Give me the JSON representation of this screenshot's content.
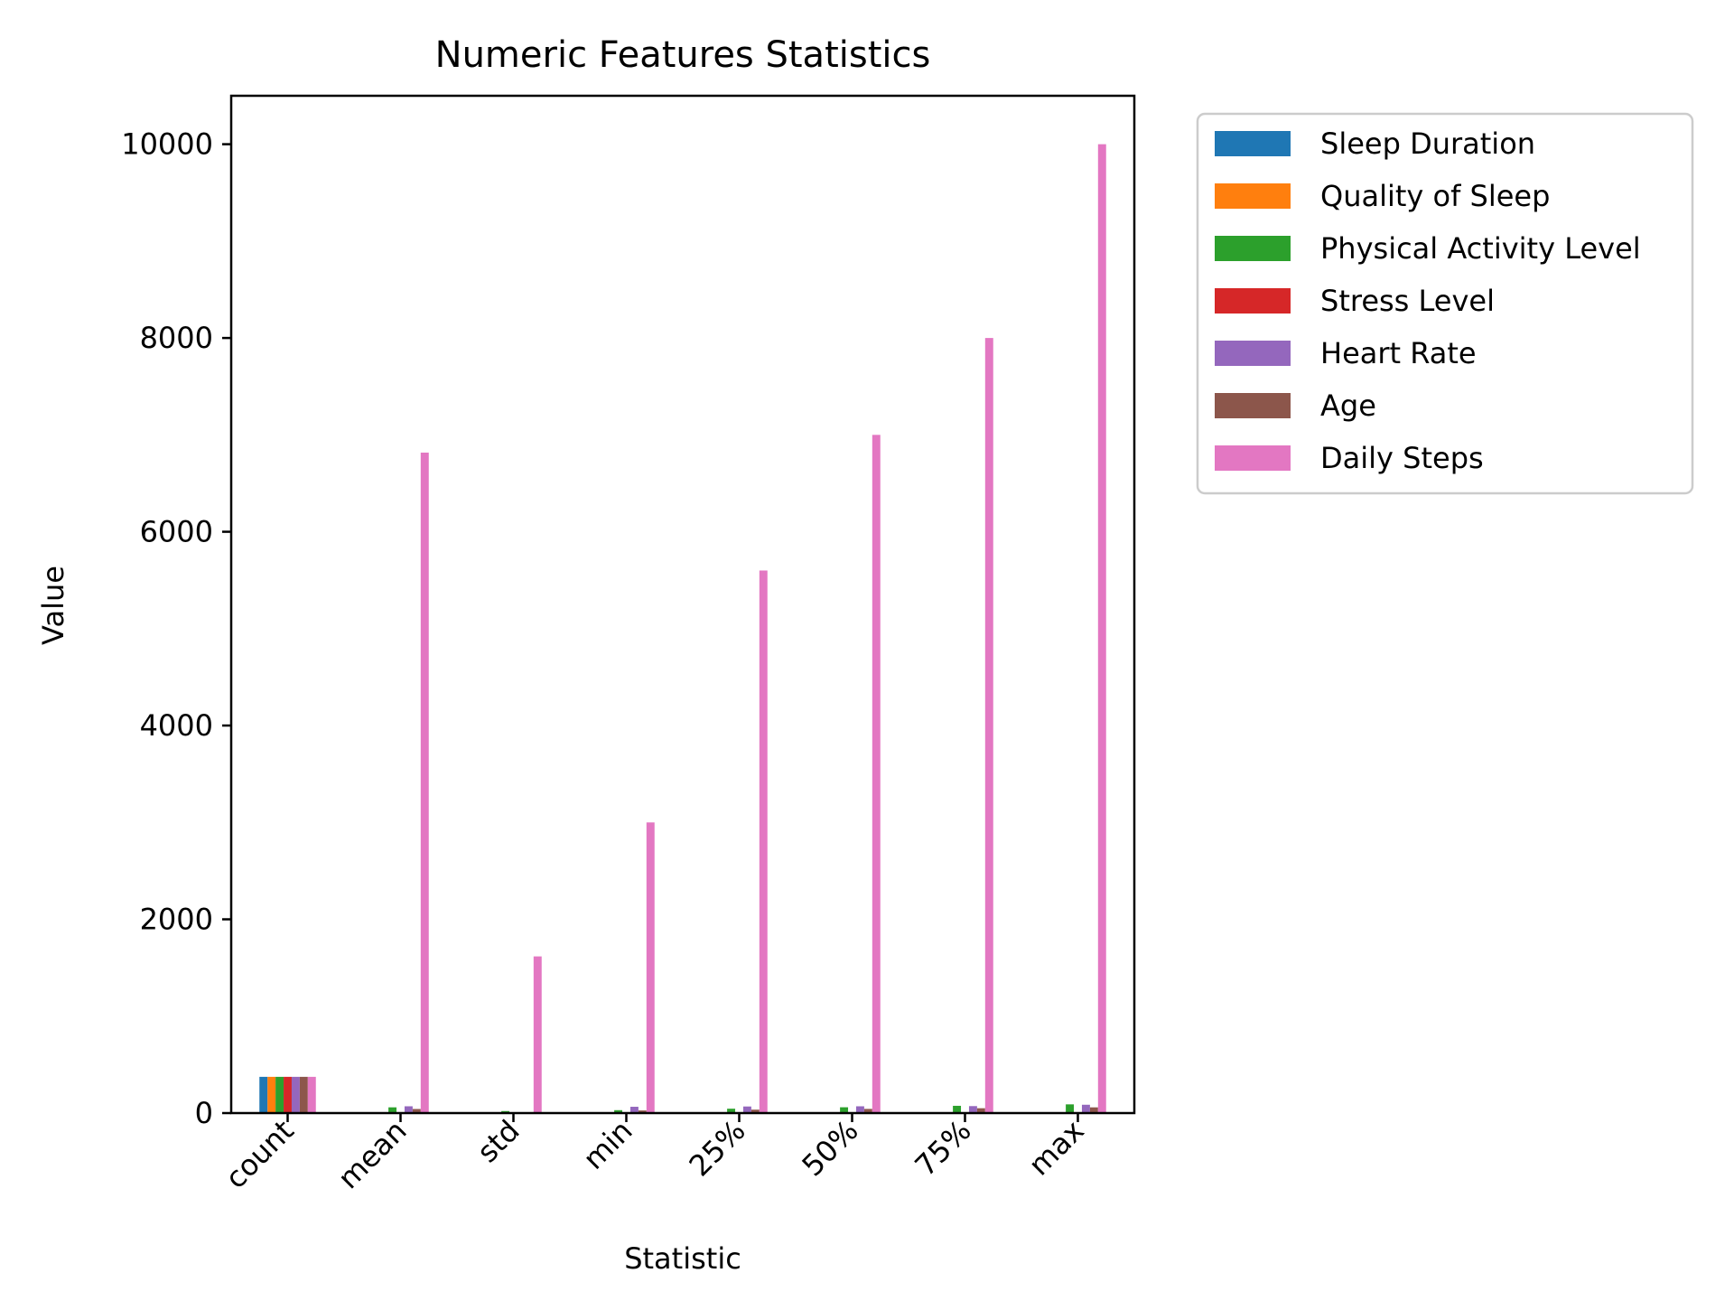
{
  "chart_data": {
    "type": "bar",
    "title": "Numeric Features Statistics",
    "xlabel": "Statistic",
    "ylabel": "Value",
    "ylim": [
      0,
      10500
    ],
    "yticks": [
      0,
      2000,
      4000,
      6000,
      8000,
      10000
    ],
    "categories": [
      "count",
      "mean",
      "std",
      "min",
      "25%",
      "50%",
      "75%",
      "max"
    ],
    "legend_position": "outside-top-right",
    "series": [
      {
        "name": "Sleep Duration",
        "color": "#1f77b4",
        "values": [
          374,
          7.13,
          0.8,
          5.8,
          6.4,
          7.2,
          7.8,
          8.5
        ]
      },
      {
        "name": "Quality of Sleep",
        "color": "#ff7f0e",
        "values": [
          374,
          7.31,
          1.2,
          4,
          6,
          7,
          8,
          9
        ]
      },
      {
        "name": "Physical Activity Level",
        "color": "#2ca02c",
        "values": [
          374,
          59.17,
          20.83,
          30,
          45,
          60,
          75,
          90
        ]
      },
      {
        "name": "Stress Level",
        "color": "#d62728",
        "values": [
          374,
          5.39,
          1.77,
          3,
          4,
          5,
          7,
          8
        ]
      },
      {
        "name": "Heart Rate",
        "color": "#9467bd",
        "values": [
          374,
          70.17,
          4.14,
          65,
          68,
          70,
          72,
          86
        ]
      },
      {
        "name": "Age",
        "color": "#8c564b",
        "values": [
          374,
          42.18,
          8.67,
          27,
          35.25,
          43,
          50,
          59
        ]
      },
      {
        "name": "Daily Steps",
        "color": "#e377c2",
        "values": [
          374,
          6817,
          1617,
          3000,
          5600,
          7000,
          8000,
          10000
        ]
      }
    ]
  }
}
